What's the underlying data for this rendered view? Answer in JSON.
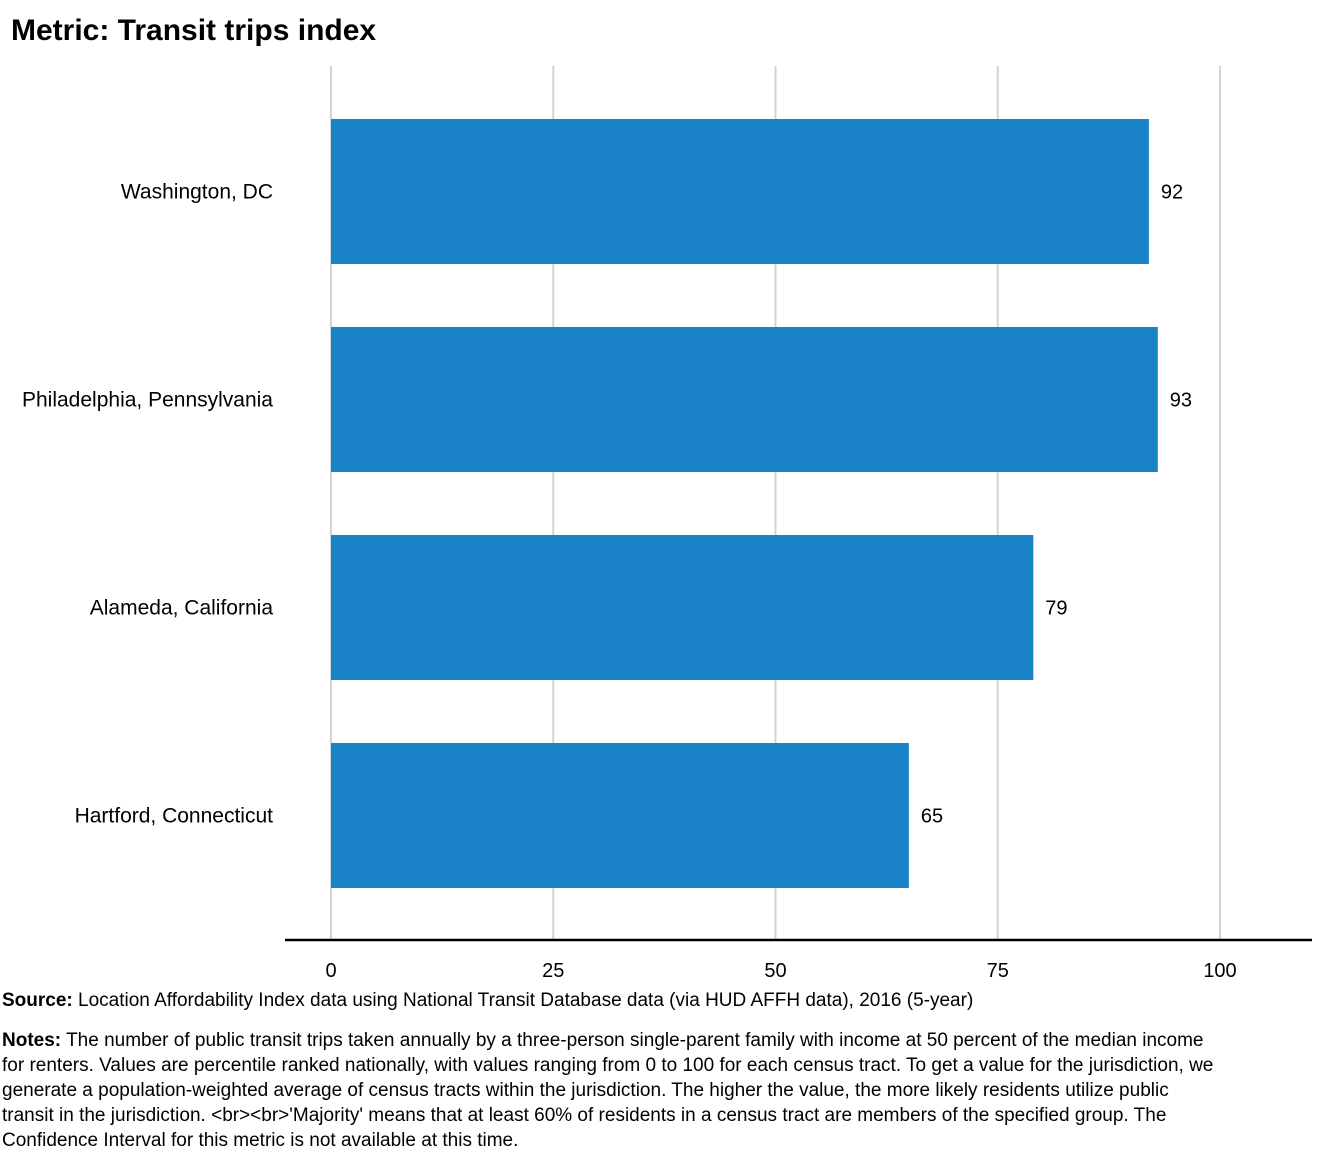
{
  "chart_data": {
    "type": "bar",
    "orientation": "horizontal",
    "title": "Metric: Transit trips index",
    "categories": [
      "Washington, DC",
      "Philadelphia, Pennsylvania",
      "Alameda, California",
      "Hartford, Connecticut"
    ],
    "values": [
      92,
      93,
      79,
      65
    ],
    "value_labels": [
      "92",
      "93",
      "79",
      "65"
    ],
    "xlim": [
      0,
      100
    ],
    "xticks": [
      "0",
      "25",
      "50",
      "75",
      "100"
    ],
    "xtick_values": [
      0,
      25,
      50,
      75,
      100
    ],
    "grid": true,
    "legend": "none",
    "bar_color": "#1a82c6"
  },
  "footer": {
    "source_label": "Source:",
    "source_text": "Location Affordability Index data using National Transit Database data (via HUD AFFH data), 2016 (5-year)",
    "notes_label": "Notes:",
    "notes_text": "The number of public transit trips taken annually by a three-person single-parent family with income at 50 percent of the median income for renters. Values are percentile ranked nationally, with values ranging from 0 to 100 for each census tract. To get a value for the jurisdiction, we generate a population-weighted average of census tracts within the jurisdiction. The higher the value, the more likely residents utilize public transit in the jurisdiction. <br><br>'Majority' means that at least 60% of residents in a census tract are members of the specified group. The Confidence Interval for this metric is not available at this time."
  }
}
